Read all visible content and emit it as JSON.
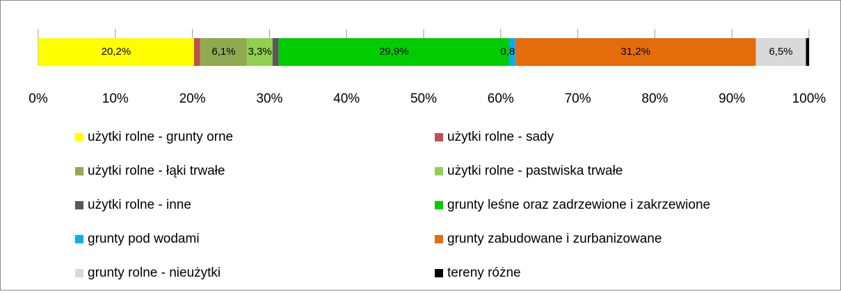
{
  "chart_data": {
    "type": "stacked-bar-horizontal",
    "series": [
      {
        "name": "użytki rolne - grunty orne",
        "color": "#ffff00",
        "values": [
          20.2
        ],
        "value_labels": [
          "20,2%"
        ]
      },
      {
        "name": "użytki rolne - sady",
        "color": "#c0504d",
        "values": [
          0.8
        ],
        "value_labels": [
          null
        ]
      },
      {
        "name": "użytki rolne - łąki trwałe",
        "color": "#8faa4f",
        "values": [
          6.1
        ],
        "value_labels": [
          "6,1%"
        ]
      },
      {
        "name": "użytki rolne - pastwiska trwałe",
        "color": "#92d050",
        "values": [
          3.3
        ],
        "value_labels": [
          "3,3%"
        ]
      },
      {
        "name": "użytki rolne - inne",
        "color": "#595959",
        "values": [
          0.8
        ],
        "value_labels": [
          null
        ]
      },
      {
        "name": "grunty leśne oraz zadrzewione i zakrzewione",
        "color": "#00cc00",
        "values": [
          29.9
        ],
        "value_labels": [
          "29,9%"
        ]
      },
      {
        "name": "grunty pod wodami",
        "color": "#00b0f0",
        "values": [
          0.8
        ],
        "value_labels": [
          "0,8%"
        ]
      },
      {
        "name": "grunty zabudowane i zurbanizowane",
        "color": "#e46c0a",
        "values": [
          31.2
        ],
        "value_labels": [
          "31,2%"
        ]
      },
      {
        "name": "grunty rolne - nieużytki",
        "color": "#d9d9d9",
        "values": [
          6.5
        ],
        "value_labels": [
          "6,5%"
        ]
      },
      {
        "name": "tereny różne",
        "color": "#000000",
        "values": [
          0.4
        ],
        "value_labels": [
          null
        ]
      }
    ],
    "xlim": [
      0,
      100
    ],
    "xticks": [
      {
        "value": 0,
        "label": "0%"
      },
      {
        "value": 10,
        "label": "10%"
      },
      {
        "value": 20,
        "label": "20%"
      },
      {
        "value": 30,
        "label": "30%"
      },
      {
        "value": 40,
        "label": "40%"
      },
      {
        "value": 50,
        "label": "50%"
      },
      {
        "value": 60,
        "label": "60%"
      },
      {
        "value": 70,
        "label": "70%"
      },
      {
        "value": 80,
        "label": "80%"
      },
      {
        "value": 90,
        "label": "90%"
      },
      {
        "value": 100,
        "label": "100%"
      }
    ],
    "legend": "bottom"
  }
}
